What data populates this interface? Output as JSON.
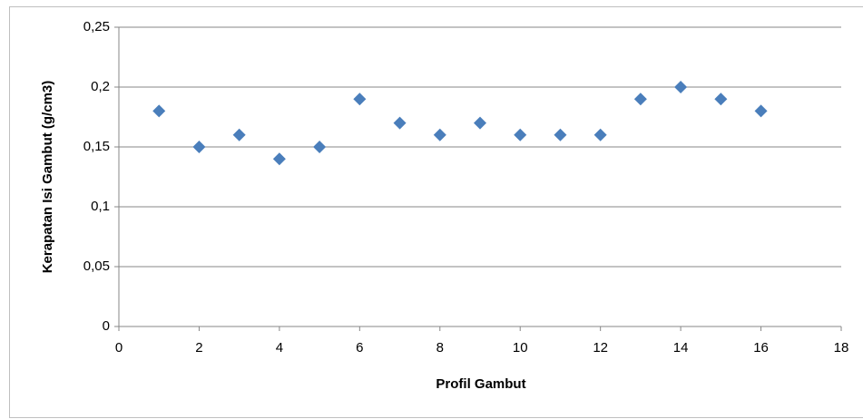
{
  "chart_data": {
    "type": "scatter",
    "xlabel": "Profil Gambut",
    "ylabel": "Kerapatan Isi Gambut (g/cm3)",
    "x": [
      1,
      2,
      3,
      4,
      5,
      6,
      7,
      8,
      9,
      10,
      11,
      12,
      13,
      14,
      15,
      16
    ],
    "values": [
      0.18,
      0.15,
      0.16,
      0.14,
      0.15,
      0.19,
      0.17,
      0.16,
      0.17,
      0.16,
      0.16,
      0.16,
      0.19,
      0.2,
      0.19,
      0.18
    ],
    "color": "#4a7ebb",
    "xlim": [
      0,
      18
    ],
    "xticks": [
      0,
      2,
      4,
      6,
      8,
      10,
      12,
      14,
      16,
      18
    ],
    "ylim": [
      0,
      0.25
    ],
    "yticks": [
      0,
      {
        "value": 0.05,
        "label": "0,05"
      },
      {
        "value": 0.1,
        "label": "0,1"
      },
      {
        "value": 0.15,
        "label": "0,15"
      },
      {
        "value": 0.2,
        "label": "0,2"
      },
      {
        "value": 0.25,
        "label": "0,25"
      }
    ],
    "grid": true
  }
}
